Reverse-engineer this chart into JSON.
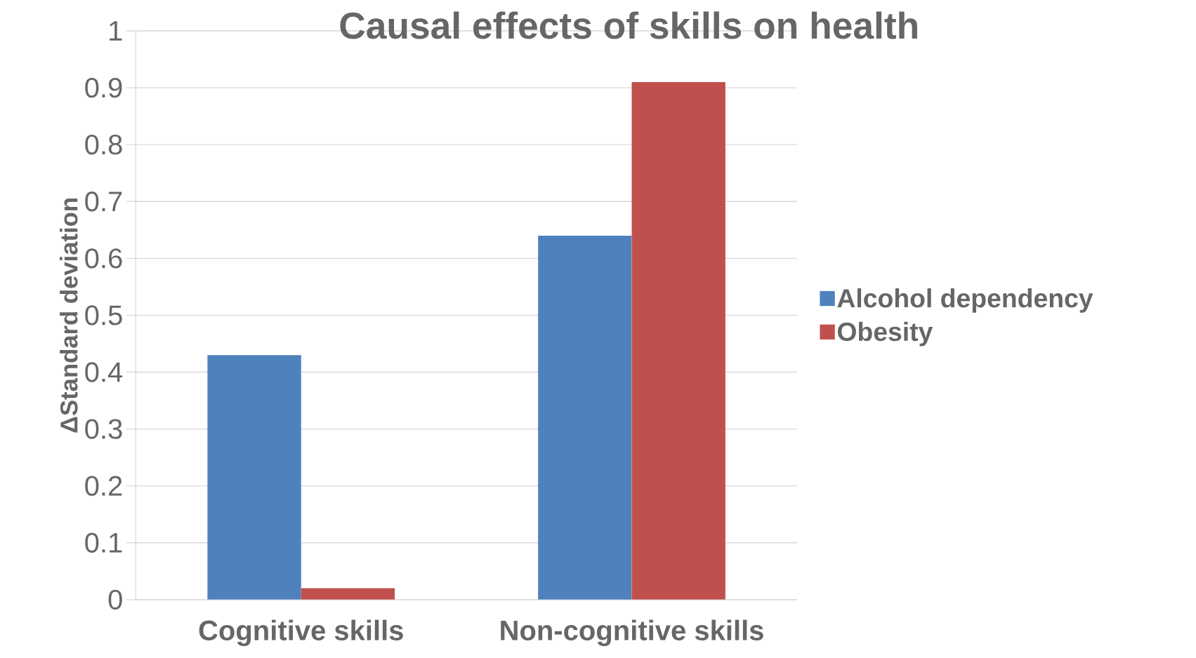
{
  "chart_data": {
    "type": "bar",
    "title": "Causal effects of skills on health",
    "ylabel": "ΔStandard deviation",
    "categories": [
      "Cognitive skills",
      "Non-cognitive skills"
    ],
    "series": [
      {
        "name": "Alcohol dependency",
        "color": "#4f81bd",
        "values": [
          0.43,
          0.64
        ]
      },
      {
        "name": "Obesity",
        "color": "#c0504d",
        "values": [
          0.02,
          0.91
        ]
      }
    ],
    "ylim": [
      0,
      1
    ],
    "yticks": [
      0,
      0.1,
      0.2,
      0.3,
      0.4,
      0.5,
      0.6,
      0.7,
      0.8,
      0.9,
      1
    ],
    "grid": "y",
    "legend": "right"
  }
}
